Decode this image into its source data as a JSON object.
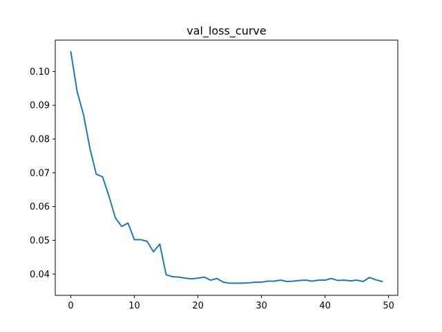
{
  "chart_data": {
    "type": "line",
    "title": "val_loss_curve",
    "xlabel": "",
    "ylabel": "",
    "xlim": [
      -2.45,
      51.45
    ],
    "ylim": [
      0.0337,
      0.1093
    ],
    "x_ticks": [
      0,
      10,
      20,
      30,
      40,
      50
    ],
    "x_tick_labels": [
      "0",
      "10",
      "20",
      "30",
      "40",
      "50"
    ],
    "y_ticks": [
      0.04,
      0.05,
      0.06,
      0.07,
      0.08,
      0.09,
      0.1
    ],
    "y_tick_labels": [
      "0.04",
      "0.05",
      "0.06",
      "0.07",
      "0.08",
      "0.09",
      "0.10"
    ],
    "grid": false,
    "series": [
      {
        "color": "#1f77b4",
        "x": [
          0,
          1,
          2,
          3,
          4,
          5,
          6,
          7,
          8,
          9,
          10,
          11,
          12,
          13,
          14,
          15,
          16,
          17,
          18,
          19,
          20,
          21,
          22,
          23,
          24,
          25,
          26,
          27,
          28,
          29,
          30,
          31,
          32,
          33,
          34,
          35,
          36,
          37,
          38,
          39,
          40,
          41,
          42,
          43,
          44,
          45,
          46,
          47,
          48,
          49
        ],
        "y": [
          0.1058,
          0.094,
          0.0872,
          0.0773,
          0.0696,
          0.0688,
          0.0631,
          0.0567,
          0.0541,
          0.0551,
          0.0502,
          0.0502,
          0.0497,
          0.0466,
          0.0489,
          0.0398,
          0.0392,
          0.0391,
          0.0388,
          0.0386,
          0.0388,
          0.0391,
          0.0382,
          0.0387,
          0.0376,
          0.0373,
          0.0373,
          0.0373,
          0.0374,
          0.0376,
          0.0376,
          0.0379,
          0.0379,
          0.0382,
          0.0378,
          0.0379,
          0.0381,
          0.0382,
          0.0379,
          0.0382,
          0.0382,
          0.0387,
          0.0381,
          0.0382,
          0.038,
          0.0382,
          0.0378,
          0.039,
          0.0383,
          0.0378
        ]
      }
    ]
  }
}
